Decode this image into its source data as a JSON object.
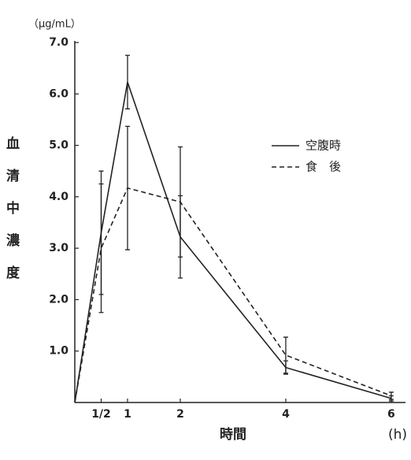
{
  "chart_data": {
    "type": "line",
    "y_label": "血清中濃度",
    "y_unit": "（μg/mL）",
    "x_label": "時間",
    "x_unit": "(h)",
    "x": [
      0,
      0.5,
      1,
      2,
      4,
      6
    ],
    "series": [
      {
        "name": "空腹時",
        "color": "#222222",
        "dash": "solid",
        "values": [
          0,
          3.3,
          6.23,
          3.22,
          0.68,
          0.08
        ],
        "error": [
          0,
          1.2,
          0.52,
          0.8,
          0.13,
          0.05
        ]
      },
      {
        "name": "食　後",
        "color": "#222222",
        "dash": "dashed",
        "values": [
          0,
          3.0,
          4.17,
          3.9,
          0.92,
          0.13
        ],
        "error": [
          0,
          1.25,
          1.2,
          1.07,
          0.35,
          0.07
        ]
      }
    ],
    "xlim": [
      0,
      6.27
    ],
    "ylim": [
      0,
      7.03
    ],
    "xticks": [
      {
        "value": 0.5,
        "label": "1/2"
      },
      1,
      2,
      4,
      6
    ],
    "yticks": [
      {
        "value": 1,
        "label": "1.0"
      },
      {
        "value": 2,
        "label": "2.0"
      },
      {
        "value": 3,
        "label": "3.0"
      },
      {
        "value": 4,
        "label": "4.0"
      },
      {
        "value": 5,
        "label": "5.0"
      },
      {
        "value": 6,
        "label": "6.0"
      },
      {
        "value": 7,
        "label": "7.0"
      }
    ],
    "legend": "upper right"
  }
}
